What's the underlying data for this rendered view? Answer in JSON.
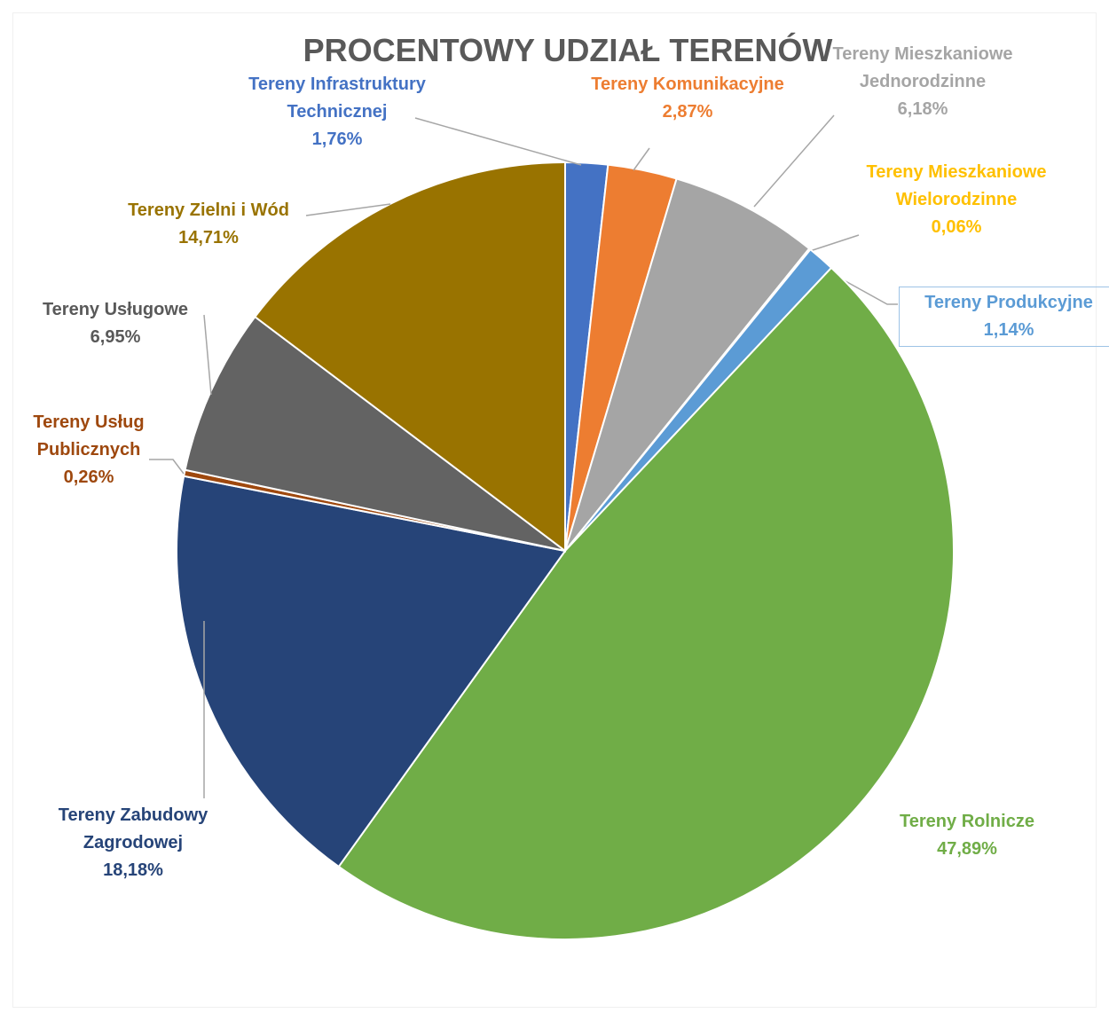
{
  "chart_data": {
    "type": "pie",
    "title": "PROCENTOWY UDZIAŁ TERENÓW",
    "categories": [
      "Tereny Infrastruktury Technicznej",
      "Tereny Komunikacyjne",
      "Tereny Mieszkaniowe Jednorodzinne",
      "Tereny Mieszkaniowe Wielorodzinne",
      "Tereny Produkcyjne",
      "Tereny Rolnicze",
      "Tereny Zabudowy Zagrodowej",
      "Tereny Usług Publicznych",
      "Tereny Usługowe",
      "Tereny Zielni i Wód"
    ],
    "values": [
      1.76,
      2.87,
      6.18,
      0.06,
      1.14,
      47.89,
      18.18,
      0.26,
      6.95,
      14.71
    ],
    "value_labels": [
      "1,76%",
      "2,87%",
      "6,18%",
      "0,06%",
      "1,14%",
      "47,89%",
      "18,18%",
      "0,26%",
      "6,95%",
      "14,71%"
    ],
    "colors": [
      "#4472c4",
      "#ed7d31",
      "#a5a5a5",
      "#ffc000",
      "#5b9bd5",
      "#70ad47",
      "#264478",
      "#9e480e",
      "#636363",
      "#997300"
    ]
  }
}
